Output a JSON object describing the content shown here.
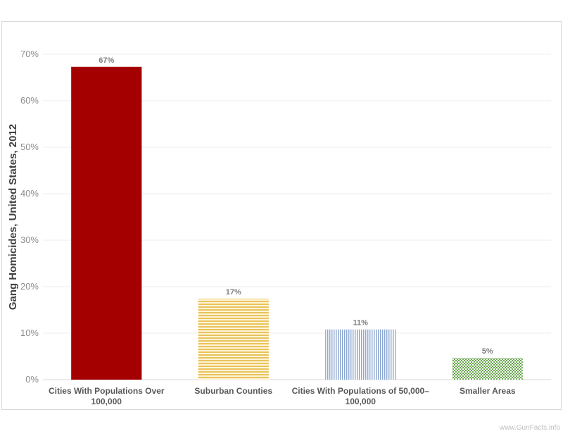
{
  "chart_data": {
    "type": "bar",
    "categories": [
      [
        "Cities With Populations Over",
        "100,000"
      ],
      [
        "Suburban Counties"
      ],
      [
        "Cities With Populations of 50,000–",
        "100,000"
      ],
      [
        "Smaller Areas"
      ]
    ],
    "values": [
      67.3,
      17.4,
      10.8,
      4.7
    ],
    "data_labels": [
      "67%",
      "17%",
      "11%",
      "5%"
    ],
    "bar_colors": [
      "#a50000",
      "#e8c25c",
      "#8aa6d0",
      "#6aa84f"
    ],
    "bar_patterns": [
      "solid",
      "horizontal-lines",
      "vertical-lines",
      "checker"
    ],
    "ylabel": "Gang Homicides, United States, 2012",
    "xlabel": "",
    "ylim": [
      0,
      70
    ],
    "yticks": [
      0,
      10,
      20,
      30,
      40,
      50,
      60,
      70
    ],
    "ytick_labels": [
      "0%",
      "10%",
      "20%",
      "30%",
      "40%",
      "50%",
      "60%",
      "70%"
    ],
    "grid": true
  },
  "watermark": "www.GunFacts.info"
}
